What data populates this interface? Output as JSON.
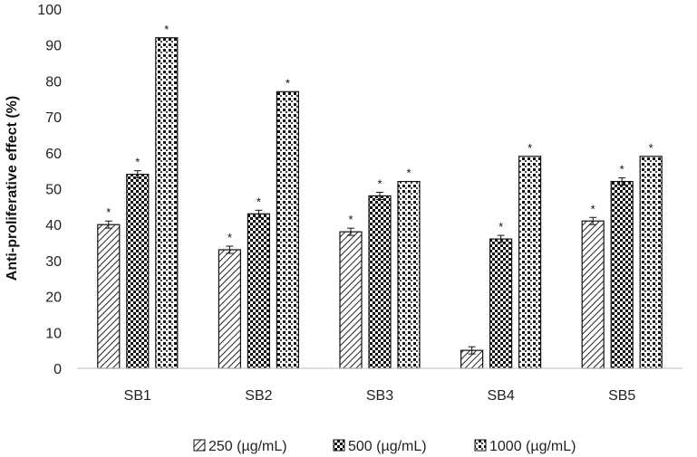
{
  "chart_data": {
    "type": "bar",
    "title": "",
    "xlabel": "",
    "ylabel": "Anti-proliferative effect (%)",
    "ylim": [
      0,
      100
    ],
    "yticks": [
      0,
      10,
      20,
      30,
      40,
      50,
      60,
      70,
      80,
      90,
      100
    ],
    "categories": [
      "SB1",
      "SB2",
      "SB3",
      "SB4",
      "SB5"
    ],
    "series": [
      {
        "name": "250 (µg/mL)",
        "pattern": "diagonal",
        "values": [
          40,
          33,
          38,
          5,
          41
        ],
        "errors": [
          1,
          1,
          1,
          1,
          1
        ],
        "significant": [
          true,
          true,
          true,
          false,
          true
        ]
      },
      {
        "name": "500 (µg/mL)",
        "pattern": "checker",
        "values": [
          54,
          43,
          48,
          36,
          52
        ],
        "errors": [
          1,
          1,
          1,
          1,
          1
        ],
        "significant": [
          true,
          true,
          true,
          true,
          true
        ]
      },
      {
        "name": "1000 (µg/mL)",
        "pattern": "dots",
        "values": [
          92,
          77,
          52,
          59,
          59
        ],
        "errors": [
          0,
          0,
          0,
          0,
          0
        ],
        "significant": [
          true,
          true,
          true,
          true,
          true
        ]
      }
    ],
    "significance_marker": "*",
    "legend_position": "bottom",
    "grid": false
  }
}
